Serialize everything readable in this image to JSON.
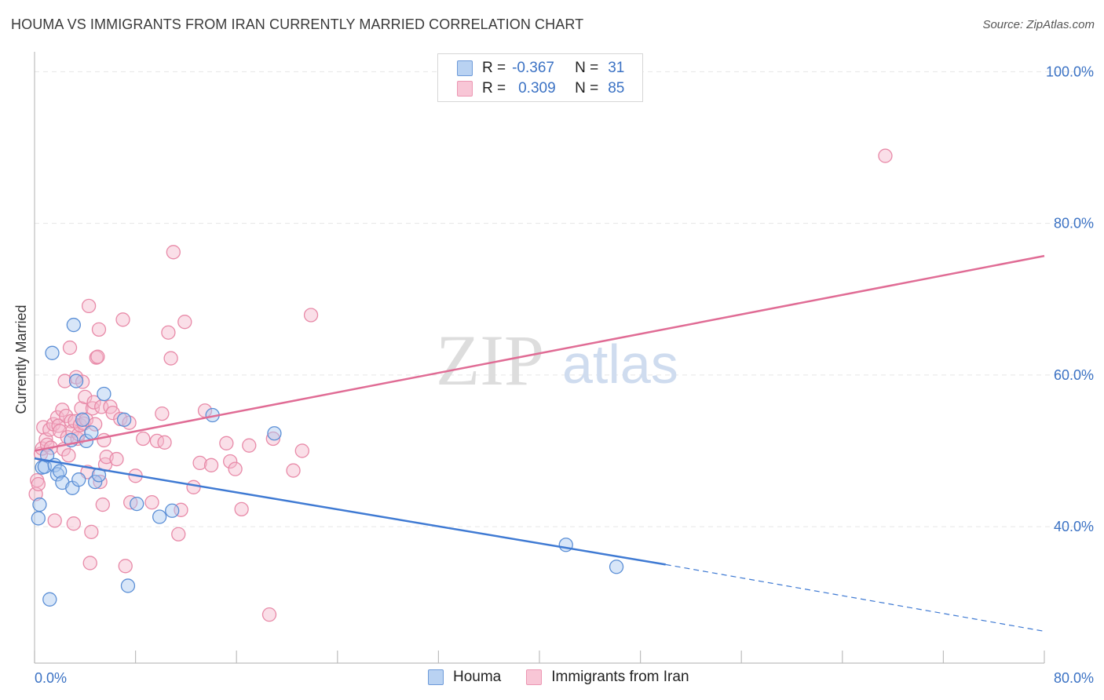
{
  "header": {
    "title": "HOUMA VS IMMIGRANTS FROM IRAN CURRENTLY MARRIED CORRELATION CHART",
    "source": "Source: ZipAtlas.com"
  },
  "watermark": {
    "zip": "ZIP",
    "atlas": "atlas"
  },
  "legend": {
    "series": [
      {
        "r_label": "R =",
        "r_value": "-0.367",
        "n_label": "N =",
        "n_value": "31"
      },
      {
        "r_label": "R =",
        "r_value": "0.309",
        "n_label": "N =",
        "n_value": "85"
      }
    ]
  },
  "bottom_legend": {
    "items": [
      "Houma",
      "Immigrants from Iran"
    ]
  },
  "colors": {
    "houma_fill": "#a9c8ef",
    "houma_stroke": "#5b8fd6",
    "houma_line": "#3f7ad3",
    "iran_fill": "#f5b8cc",
    "iran_stroke": "#e88aa8",
    "iran_line": "#e06c95",
    "axis_label": "#3b72c4",
    "grid": "#e6e6e6"
  },
  "chart_data": {
    "type": "scatter",
    "title": "HOUMA VS IMMIGRANTS FROM IRAN CURRENTLY MARRIED CORRELATION CHART",
    "xlabel": "",
    "ylabel": "Currently Married",
    "xlim": [
      0,
      80
    ],
    "ylim": [
      22,
      102
    ],
    "x_tick_labels": [
      "0.0%",
      "80.0%"
    ],
    "y_ticks": [
      40,
      60,
      80,
      100
    ],
    "y_tick_labels": [
      "40.0%",
      "60.0%",
      "80.0%",
      "100.0%"
    ],
    "grid": true,
    "legend_position": "top-center",
    "series": [
      {
        "name": "Houma",
        "points": [
          [
            0.3,
            41.1
          ],
          [
            0.4,
            42.9
          ],
          [
            0.6,
            47.8
          ],
          [
            0.8,
            47.9
          ],
          [
            1.0,
            49.4
          ],
          [
            1.2,
            30.4
          ],
          [
            1.4,
            62.9
          ],
          [
            1.6,
            48.1
          ],
          [
            1.8,
            46.9
          ],
          [
            2.0,
            47.3
          ],
          [
            2.2,
            45.8
          ],
          [
            2.9,
            51.4
          ],
          [
            3.0,
            45.1
          ],
          [
            3.1,
            66.6
          ],
          [
            3.3,
            59.2
          ],
          [
            3.5,
            46.2
          ],
          [
            3.8,
            54.1
          ],
          [
            4.1,
            51.3
          ],
          [
            4.5,
            52.4
          ],
          [
            4.8,
            45.9
          ],
          [
            5.1,
            46.8
          ],
          [
            5.5,
            57.5
          ],
          [
            7.1,
            54.1
          ],
          [
            7.4,
            32.2
          ],
          [
            8.1,
            43.0
          ],
          [
            9.9,
            41.3
          ],
          [
            10.9,
            42.1
          ],
          [
            14.1,
            54.7
          ],
          [
            19.0,
            52.3
          ],
          [
            42.1,
            37.6
          ],
          [
            46.1,
            34.7
          ]
        ],
        "trend": {
          "x": [
            0.0,
            50.0
          ],
          "y": [
            49.0,
            35.0
          ],
          "dashed_x": [
            50.0,
            80.0
          ],
          "dashed_y": [
            35.0,
            26.2
          ]
        }
      },
      {
        "name": "Immigrants from Iran",
        "points": [
          [
            0.1,
            44.3
          ],
          [
            0.2,
            46.1
          ],
          [
            0.3,
            45.6
          ],
          [
            0.5,
            49.6
          ],
          [
            0.6,
            50.3
          ],
          [
            0.7,
            53.1
          ],
          [
            0.9,
            51.5
          ],
          [
            1.0,
            50.8
          ],
          [
            1.2,
            52.8
          ],
          [
            1.3,
            50.4
          ],
          [
            1.5,
            53.5
          ],
          [
            1.6,
            40.8
          ],
          [
            1.8,
            54.4
          ],
          [
            1.9,
            53.3
          ],
          [
            2.0,
            52.6
          ],
          [
            2.2,
            55.4
          ],
          [
            2.3,
            50.2
          ],
          [
            2.4,
            59.2
          ],
          [
            2.5,
            54.6
          ],
          [
            2.6,
            51.8
          ],
          [
            2.7,
            49.4
          ],
          [
            2.8,
            63.6
          ],
          [
            2.9,
            53.9
          ],
          [
            3.0,
            52.6
          ],
          [
            3.1,
            40.4
          ],
          [
            3.2,
            53.9
          ],
          [
            3.3,
            59.7
          ],
          [
            3.4,
            51.6
          ],
          [
            3.5,
            52.2
          ],
          [
            3.6,
            53.4
          ],
          [
            3.7,
            55.6
          ],
          [
            3.8,
            59.1
          ],
          [
            3.9,
            53.6
          ],
          [
            4.0,
            57.1
          ],
          [
            4.1,
            54.1
          ],
          [
            4.2,
            47.2
          ],
          [
            4.3,
            69.1
          ],
          [
            4.4,
            35.2
          ],
          [
            4.5,
            39.3
          ],
          [
            4.6,
            55.6
          ],
          [
            4.7,
            56.4
          ],
          [
            4.8,
            53.5
          ],
          [
            4.9,
            62.3
          ],
          [
            5.0,
            62.4
          ],
          [
            5.1,
            66.0
          ],
          [
            5.2,
            45.9
          ],
          [
            5.3,
            55.8
          ],
          [
            5.4,
            42.9
          ],
          [
            5.5,
            51.4
          ],
          [
            5.6,
            48.2
          ],
          [
            5.7,
            49.2
          ],
          [
            6.0,
            55.8
          ],
          [
            6.2,
            55.0
          ],
          [
            6.5,
            48.9
          ],
          [
            6.8,
            54.2
          ],
          [
            7.0,
            67.3
          ],
          [
            7.2,
            34.8
          ],
          [
            7.5,
            53.7
          ],
          [
            7.6,
            43.2
          ],
          [
            8.0,
            46.7
          ],
          [
            8.6,
            51.6
          ],
          [
            9.3,
            43.2
          ],
          [
            9.7,
            51.3
          ],
          [
            10.1,
            54.9
          ],
          [
            10.3,
            51.1
          ],
          [
            10.6,
            65.6
          ],
          [
            10.8,
            62.2
          ],
          [
            11.0,
            76.2
          ],
          [
            11.4,
            39.0
          ],
          [
            11.6,
            42.2
          ],
          [
            11.9,
            67.0
          ],
          [
            12.6,
            45.2
          ],
          [
            13.1,
            48.4
          ],
          [
            13.5,
            55.3
          ],
          [
            14.0,
            48.1
          ],
          [
            15.2,
            51.0
          ],
          [
            15.5,
            48.6
          ],
          [
            15.9,
            47.6
          ],
          [
            16.4,
            42.3
          ],
          [
            17.0,
            50.7
          ],
          [
            18.6,
            28.4
          ],
          [
            18.9,
            51.6
          ],
          [
            20.5,
            47.4
          ],
          [
            21.2,
            50.0
          ],
          [
            21.9,
            67.9
          ],
          [
            67.4,
            88.9
          ]
        ],
        "trend": {
          "x": [
            0.0,
            80.0
          ],
          "y": [
            50.0,
            75.7
          ]
        }
      }
    ]
  }
}
